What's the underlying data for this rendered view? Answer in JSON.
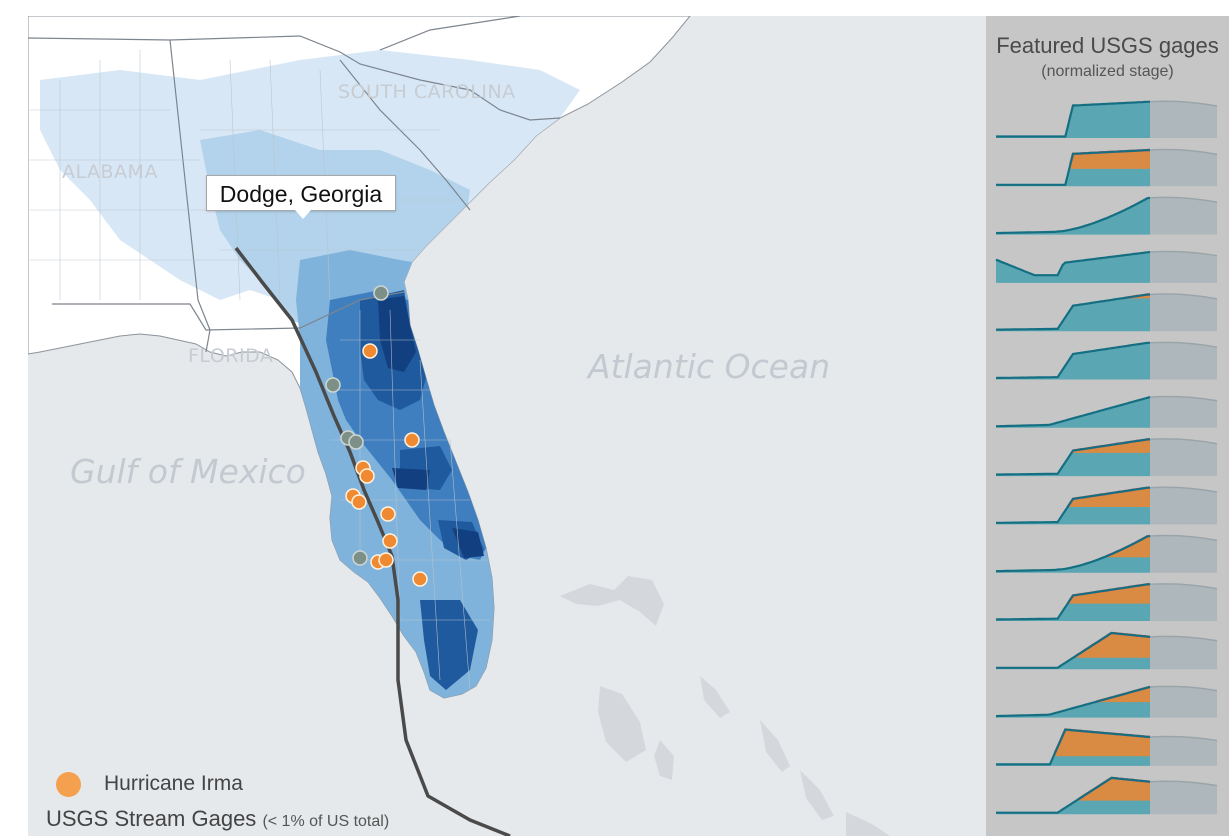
{
  "map": {
    "colors": {
      "ocean": "#e6e9ec",
      "land": "#ffffff",
      "borders": "#8c939b",
      "precip_light": "#d6e6f6",
      "precip_mid": "#9ecae1",
      "precip_high": "#4f8fc9",
      "precip_max": "#123f80",
      "track": "#555555",
      "gage_active": "#f08a32",
      "gage_inactive": "#7d9087"
    },
    "ocean_labels": [
      "Atlantic Ocean",
      "Gulf of Mexico"
    ],
    "state_labels": [
      "ALABAMA",
      "SOUTH CAROLINA",
      "FLORIDA"
    ]
  },
  "tooltip": {
    "text": "Dodge, Georgia"
  },
  "panel": {
    "title": "Featured USGS gages",
    "subtitle": "(normalized stage)",
    "colors": {
      "line": "#156f83",
      "fill": "#5aa6b2",
      "flood": "#d98b44",
      "flood_edge": "#e55f4f",
      "future": "#aeb7bb"
    },
    "gages": [
      {
        "baseline": 0.05,
        "peak": 0.95,
        "flood": 0,
        "shape": "step-early"
      },
      {
        "baseline": 0.05,
        "peak": 0.95,
        "flood": 0.55,
        "shape": "step-early"
      },
      {
        "baseline": 0.05,
        "peak": 0.9,
        "flood": 0,
        "shape": "late-rise"
      },
      {
        "baseline": 0.2,
        "peak": 0.8,
        "flood": 0,
        "shape": "dip"
      },
      {
        "baseline": 0.1,
        "peak": 0.75,
        "flood": 0.15,
        "shape": "step-mid"
      },
      {
        "baseline": 0.05,
        "peak": 0.9,
        "flood": 0,
        "shape": "step-mid"
      },
      {
        "baseline": 0.1,
        "peak": 0.65,
        "flood": 0.05,
        "shape": "slow"
      },
      {
        "baseline": 0.05,
        "peak": 0.75,
        "flood": 0.4,
        "shape": "step-mid"
      },
      {
        "baseline": 0.05,
        "peak": 0.8,
        "flood": 0.55,
        "shape": "step-mid"
      },
      {
        "baseline": 0.05,
        "peak": 0.95,
        "flood": 0.6,
        "shape": "late-rise"
      },
      {
        "baseline": 0.05,
        "peak": 0.95,
        "flood": 0.55,
        "shape": "step-mid"
      },
      {
        "baseline": 0.05,
        "peak": 0.95,
        "flood": 0.7,
        "shape": "peak-mid"
      },
      {
        "baseline": 0.05,
        "peak": 0.85,
        "flood": 0.6,
        "shape": "slow"
      },
      {
        "baseline": 0.05,
        "peak": 0.95,
        "flood": 0.75,
        "shape": "peak-early"
      },
      {
        "baseline": 0.05,
        "peak": 0.95,
        "flood": 0.65,
        "shape": "peak-mid"
      }
    ]
  },
  "legend": {
    "irma_label": "Hurricane Irma",
    "gages_label": "USGS Stream Gages",
    "gages_note": "(< 1% of US total)"
  }
}
